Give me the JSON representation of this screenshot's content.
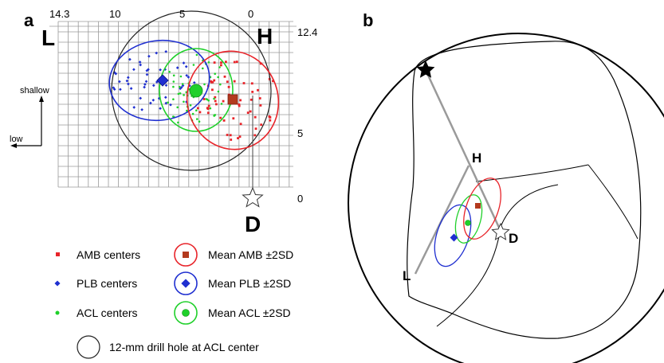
{
  "panel_a": {
    "label": "a",
    "corner_labels": {
      "left": "L",
      "right": "H"
    },
    "top_ticks": [
      "14.3",
      "10",
      "5",
      "0"
    ],
    "right_ticks": [
      "12.4",
      "5",
      "0"
    ],
    "depth_axis_label": "shallow",
    "height_axis_label": "low",
    "point_label": "D",
    "legend": [
      {
        "marker_label": "AMB centers",
        "mean_label": "Mean AMB ±2SD",
        "color": "#e8242a"
      },
      {
        "marker_label": "PLB centers",
        "mean_label": "Mean PLB ±2SD",
        "color": "#1f2fd0"
      },
      {
        "marker_label": "ACL centers",
        "mean_label": "Mean ACL ±2SD",
        "color": "#1fd02a"
      }
    ],
    "drill_hole_label": "12-mm drill hole at ACL center"
  },
  "panel_b": {
    "label": "b",
    "point_labels": {
      "H": "H",
      "D": "D",
      "L": "L"
    }
  },
  "colors": {
    "amb": "#e8242a",
    "plb": "#1f2fd0",
    "acl": "#1fd02a",
    "amb_mean_fill": "#b33a1e",
    "grid": "#9a9a9a",
    "outline": "#000000",
    "line": "#9a9a9a"
  }
}
